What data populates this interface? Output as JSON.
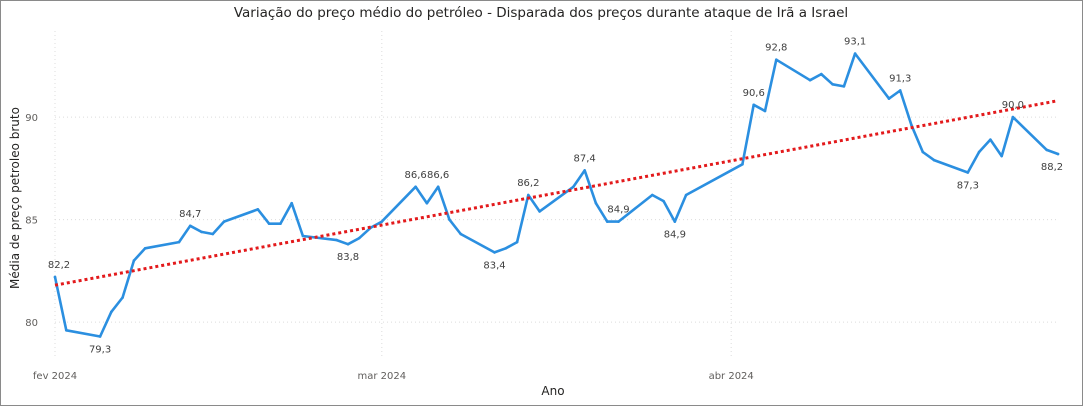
{
  "chart_data": {
    "type": "line",
    "title": "Variação do preço médio do petróleo - Disparada dos preços durante ataque de Irã a Israel",
    "xlabel": "Ano",
    "ylabel": "Média de preço petroleo bruto",
    "x_ticks": [
      "fev 2024",
      "mar 2024",
      "abr 2024"
    ],
    "y_ticks": [
      80,
      85,
      90
    ],
    "ylim": [
      78.2,
      94.2
    ],
    "grid": true,
    "series": [
      {
        "color": "#2b8fe0",
        "points": [
          {
            "x": "2024-02-01",
            "y": 82.2,
            "label": "82,2"
          },
          {
            "x": "2024-02-02",
            "y": 79.6
          },
          {
            "x": "2024-02-05",
            "y": 79.3,
            "label": "79,3"
          },
          {
            "x": "2024-02-06",
            "y": 80.5
          },
          {
            "x": "2024-02-07",
            "y": 81.2
          },
          {
            "x": "2024-02-08",
            "y": 83.0
          },
          {
            "x": "2024-02-09",
            "y": 83.6
          },
          {
            "x": "2024-02-12",
            "y": 83.9
          },
          {
            "x": "2024-02-13",
            "y": 84.7,
            "label": "84,7"
          },
          {
            "x": "2024-02-14",
            "y": 84.4
          },
          {
            "x": "2024-02-15",
            "y": 84.3
          },
          {
            "x": "2024-02-16",
            "y": 84.9
          },
          {
            "x": "2024-02-19",
            "y": 85.5
          },
          {
            "x": "2024-02-20",
            "y": 84.8
          },
          {
            "x": "2024-02-21",
            "y": 84.8
          },
          {
            "x": "2024-02-22",
            "y": 85.8
          },
          {
            "x": "2024-02-23",
            "y": 84.2
          },
          {
            "x": "2024-02-26",
            "y": 84.0
          },
          {
            "x": "2024-02-27",
            "y": 83.8,
            "label": "83,8"
          },
          {
            "x": "2024-02-28",
            "y": 84.1
          },
          {
            "x": "2024-02-29",
            "y": 84.6
          },
          {
            "x": "2024-03-01",
            "y": 84.9
          },
          {
            "x": "2024-03-04",
            "y": 86.6,
            "label": "86,6"
          },
          {
            "x": "2024-03-05",
            "y": 85.8
          },
          {
            "x": "2024-03-06",
            "y": 86.6,
            "label": "86,6"
          },
          {
            "x": "2024-03-07",
            "y": 85.0
          },
          {
            "x": "2024-03-08",
            "y": 84.3
          },
          {
            "x": "2024-03-11",
            "y": 83.4,
            "label": "83,4"
          },
          {
            "x": "2024-03-12",
            "y": 83.6
          },
          {
            "x": "2024-03-13",
            "y": 83.9
          },
          {
            "x": "2024-03-14",
            "y": 86.2,
            "label": "86,2"
          },
          {
            "x": "2024-03-15",
            "y": 85.4
          },
          {
            "x": "2024-03-18",
            "y": 86.6
          },
          {
            "x": "2024-03-19",
            "y": 87.4,
            "label": "87,4"
          },
          {
            "x": "2024-03-20",
            "y": 85.8
          },
          {
            "x": "2024-03-21",
            "y": 84.9
          },
          {
            "x": "2024-03-22",
            "y": 84.9,
            "label": "84,9"
          },
          {
            "x": "2024-03-25",
            "y": 86.2
          },
          {
            "x": "2024-03-26",
            "y": 85.9
          },
          {
            "x": "2024-03-27",
            "y": 84.9,
            "label": "84,9"
          },
          {
            "x": "2024-03-28",
            "y": 86.2
          },
          {
            "x": "2024-04-02",
            "y": 87.7
          },
          {
            "x": "2024-04-03",
            "y": 90.6,
            "label": "90,6"
          },
          {
            "x": "2024-04-04",
            "y": 90.3
          },
          {
            "x": "2024-04-05",
            "y": 92.8,
            "label": "92,8"
          },
          {
            "x": "2024-04-08",
            "y": 91.8
          },
          {
            "x": "2024-04-09",
            "y": 92.1
          },
          {
            "x": "2024-04-10",
            "y": 91.6
          },
          {
            "x": "2024-04-11",
            "y": 91.5
          },
          {
            "x": "2024-04-12",
            "y": 93.1,
            "label": "93,1"
          },
          {
            "x": "2024-04-15",
            "y": 90.9
          },
          {
            "x": "2024-04-16",
            "y": 91.3,
            "label": "91,3"
          },
          {
            "x": "2024-04-17",
            "y": 89.6
          },
          {
            "x": "2024-04-18",
            "y": 88.3
          },
          {
            "x": "2024-04-19",
            "y": 87.9
          },
          {
            "x": "2024-04-22",
            "y": 87.3,
            "label": "87,3"
          },
          {
            "x": "2024-04-23",
            "y": 88.3
          },
          {
            "x": "2024-04-24",
            "y": 88.9
          },
          {
            "x": "2024-04-25",
            "y": 88.1
          },
          {
            "x": "2024-04-26",
            "y": 90.0,
            "label": "90,0"
          },
          {
            "x": "2024-04-29",
            "y": 88.4
          },
          {
            "x": "2024-04-30",
            "y": 88.2,
            "label": "88,2"
          }
        ]
      }
    ],
    "trendline": {
      "color": "#e31a1c",
      "style": "dotted",
      "start": {
        "x": "2024-02-01",
        "y": 81.8
      },
      "end": {
        "x": "2024-04-30",
        "y": 90.8
      }
    }
  }
}
